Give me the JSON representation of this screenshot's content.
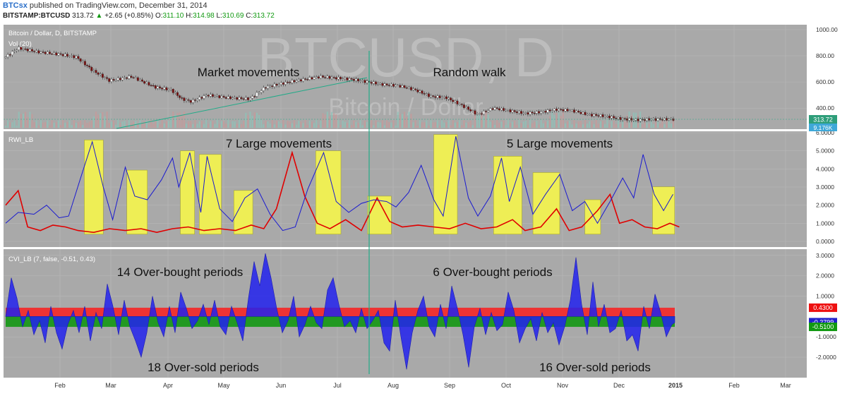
{
  "header": {
    "brand": "BTCsx",
    "published": "published on TradingView.com, December 31, 2014",
    "symbol": "BITSTAMP:BTCUSD",
    "last": "313.72",
    "change": "+2.65 (+0.85%)",
    "o_label": "O:",
    "o": "311.10",
    "h_label": "H:",
    "h": "314.98",
    "l_label": "L:",
    "l": "310.69",
    "c_label": "C:",
    "c": "313.72"
  },
  "colors": {
    "panel_bg": "#a9a9a9",
    "grid": "#b9b9b9",
    "candle_up": "#ffffff",
    "candle_down": "#7a1010",
    "rwi_high": "#1a1ad0",
    "rwi_low": "#e00000",
    "highlight": "#eeee55",
    "cvi_fill": "#2222ee",
    "band_red": "#ee3333",
    "band_green": "#229922",
    "divider": "#22aa88",
    "trend": "#22aa88"
  },
  "watermark": {
    "main": "BTCUSD, D",
    "sub": "Bitcoin / Dollar"
  },
  "chart_data": [
    {
      "type": "candlestick",
      "title": "Bitcoin / Dollar, D, BITSTAMP",
      "volume_label": "Vol (20)",
      "ylim": [
        250,
        1000
      ],
      "yticks": [
        "1000.00",
        "800.00",
        "600.00",
        "400.00"
      ],
      "price_tag": "313.72",
      "volume_tag": "9.176K",
      "x_months": [
        "Feb",
        "Mar",
        "Apr",
        "May",
        "Jun",
        "Jul",
        "Aug",
        "Sep",
        "Oct",
        "Nov",
        "Dec",
        "2015",
        "Feb",
        "Mar"
      ],
      "close_series": [
        [
          1,
          800
        ],
        [
          8,
          860
        ],
        [
          20,
          830
        ],
        [
          35,
          810
        ],
        [
          45,
          790
        ],
        [
          55,
          690
        ],
        [
          66,
          610
        ],
        [
          80,
          640
        ],
        [
          95,
          560
        ],
        [
          105,
          540
        ],
        [
          112,
          470
        ],
        [
          118,
          450
        ],
        [
          128,
          500
        ],
        [
          140,
          480
        ],
        [
          155,
          470
        ],
        [
          165,
          560
        ],
        [
          180,
          600
        ],
        [
          190,
          620
        ],
        [
          200,
          640
        ],
        [
          210,
          630
        ],
        [
          220,
          620
        ],
        [
          230,
          600
        ],
        [
          240,
          580
        ],
        [
          250,
          570
        ],
        [
          260,
          540
        ],
        [
          270,
          490
        ],
        [
          280,
          480
        ],
        [
          290,
          420
        ],
        [
          300,
          350
        ],
        [
          310,
          400
        ],
        [
          320,
          380
        ],
        [
          330,
          360
        ],
        [
          340,
          370
        ],
        [
          350,
          390
        ],
        [
          360,
          380
        ],
        [
          370,
          350
        ],
        [
          380,
          340
        ],
        [
          390,
          320
        ],
        [
          400,
          310
        ],
        [
          410,
          314
        ]
      ],
      "annotations": [
        "Market movements",
        "Random walk"
      ]
    },
    {
      "type": "line",
      "title": "RWI_LB",
      "ylim": [
        0,
        6
      ],
      "yticks": [
        "6.0000",
        "5.0000",
        "4.0000",
        "3.0000",
        "2.0000",
        "1.0000",
        "0.0000"
      ],
      "series": [
        {
          "name": "high",
          "values": [
            [
              0,
              1
            ],
            [
              8,
              1.6
            ],
            [
              18,
              1.5
            ],
            [
              26,
              2
            ],
            [
              34,
              1.3
            ],
            [
              40,
              1.4
            ],
            [
              48,
              3.6
            ],
            [
              55,
              5.5
            ],
            [
              62,
              3
            ],
            [
              68,
              1.2
            ],
            [
              76,
              4.1
            ],
            [
              82,
              2.5
            ],
            [
              90,
              2.3
            ],
            [
              99,
              3.4
            ],
            [
              106,
              4.6
            ],
            [
              110,
              3
            ],
            [
              117,
              4.9
            ],
            [
              124,
              1.6
            ],
            [
              128,
              4.7
            ],
            [
              136,
              1.8
            ],
            [
              144,
              1.1
            ],
            [
              152,
              2.4
            ],
            [
              160,
              2.9
            ],
            [
              168,
              1.5
            ],
            [
              176,
              0.6
            ],
            [
              184,
              0.8
            ],
            [
              192,
              2.9
            ],
            [
              202,
              4.9
            ],
            [
              210,
              2.2
            ],
            [
              218,
              1.6
            ],
            [
              226,
              2.1
            ],
            [
              234,
              2.3
            ],
            [
              242,
              2.2
            ],
            [
              248,
              1.9
            ],
            [
              256,
              2.7
            ],
            [
              264,
              4.2
            ],
            [
              272,
              2.3
            ],
            [
              278,
              1.4
            ],
            [
              286,
              5.8
            ],
            [
              294,
              2.4
            ],
            [
              300,
              1.4
            ],
            [
              308,
              2.5
            ],
            [
              315,
              4.6
            ],
            [
              320,
              2.2
            ],
            [
              327,
              4.1
            ],
            [
              335,
              1.5
            ],
            [
              343,
              2.6
            ],
            [
              352,
              3.7
            ],
            [
              360,
              1.7
            ],
            [
              368,
              2.2
            ],
            [
              376,
              1.0
            ],
            [
              384,
              2.2
            ],
            [
              392,
              3.5
            ],
            [
              399,
              2.4
            ],
            [
              405,
              4.8
            ],
            [
              412,
              2.6
            ],
            [
              418,
              1.7
            ],
            [
              424,
              2.6
            ]
          ]
        },
        {
          "name": "low",
          "values": [
            [
              0,
              2.0
            ],
            [
              8,
              2.8
            ],
            [
              14,
              0.8
            ],
            [
              22,
              0.6
            ],
            [
              30,
              0.9
            ],
            [
              38,
              0.8
            ],
            [
              46,
              0.6
            ],
            [
              56,
              0.5
            ],
            [
              66,
              0.7
            ],
            [
              76,
              0.6
            ],
            [
              86,
              0.7
            ],
            [
              96,
              0.5
            ],
            [
              106,
              0.7
            ],
            [
              116,
              0.8
            ],
            [
              126,
              0.6
            ],
            [
              136,
              0.7
            ],
            [
              146,
              0.6
            ],
            [
              156,
              0.9
            ],
            [
              164,
              0.7
            ],
            [
              172,
              1.8
            ],
            [
              182,
              4.9
            ],
            [
              190,
              2.5
            ],
            [
              198,
              1.0
            ],
            [
              206,
              0.7
            ],
            [
              216,
              1.2
            ],
            [
              226,
              0.6
            ],
            [
              236,
              2.4
            ],
            [
              244,
              1.1
            ],
            [
              252,
              0.8
            ],
            [
              262,
              0.9
            ],
            [
              272,
              0.8
            ],
            [
              282,
              0.7
            ],
            [
              292,
              1.0
            ],
            [
              302,
              0.7
            ],
            [
              312,
              0.8
            ],
            [
              322,
              1.2
            ],
            [
              330,
              0.6
            ],
            [
              340,
              0.8
            ],
            [
              350,
              1.8
            ],
            [
              358,
              0.6
            ],
            [
              366,
              0.8
            ],
            [
              376,
              1.7
            ],
            [
              384,
              2.6
            ],
            [
              390,
              1.0
            ],
            [
              398,
              1.2
            ],
            [
              406,
              0.8
            ],
            [
              414,
              0.7
            ],
            [
              422,
              1.0
            ],
            [
              428,
              0.8
            ]
          ]
        }
      ],
      "highlight_periods": [
        [
          50,
          62
        ],
        [
          77,
          90
        ],
        [
          111,
          120
        ],
        [
          123,
          137
        ],
        [
          145,
          157
        ],
        [
          197,
          213
        ],
        [
          230,
          245
        ],
        [
          272,
          287
        ],
        [
          310,
          328
        ],
        [
          335,
          352
        ],
        [
          368,
          378
        ],
        [
          411,
          425
        ]
      ],
      "annotations": [
        "7 Large movements",
        "5 Large movements"
      ]
    },
    {
      "type": "area",
      "title": "CVI_LB (7, false, -0.51, 0.43)",
      "ylim": [
        -2.9,
        3.2
      ],
      "yticks": [
        "3.0000",
        "2.0000",
        "1.0000",
        "-1.0000",
        "-2.0000"
      ],
      "band_upper": 0.43,
      "band_lower": -0.51,
      "band_upper_tag": "0.4300",
      "band_lower_tag": "-0.5100",
      "last_value_tag": "-0.2799",
      "values": [
        [
          0,
          0
        ],
        [
          4,
          1.9
        ],
        [
          8,
          0.9
        ],
        [
          12,
          -0.5
        ],
        [
          16,
          0.3
        ],
        [
          20,
          -0.9
        ],
        [
          24,
          -0.2
        ],
        [
          28,
          -1.3
        ],
        [
          32,
          0.5
        ],
        [
          36,
          -0.8
        ],
        [
          40,
          -1.6
        ],
        [
          44,
          -0.4
        ],
        [
          48,
          0.3
        ],
        [
          52,
          -0.8
        ],
        [
          56,
          0.5
        ],
        [
          60,
          -1.2
        ],
        [
          64,
          0.2
        ],
        [
          68,
          -0.6
        ],
        [
          72,
          1.6
        ],
        [
          76,
          0.5
        ],
        [
          80,
          -0.9
        ],
        [
          84,
          0.8
        ],
        [
          88,
          -0.5
        ],
        [
          92,
          -1.2
        ],
        [
          96,
          -2.0
        ],
        [
          100,
          -0.8
        ],
        [
          104,
          1.0
        ],
        [
          108,
          -0.3
        ],
        [
          112,
          -1.0
        ],
        [
          116,
          0.5
        ],
        [
          120,
          -0.8
        ],
        [
          124,
          1.2
        ],
        [
          128,
          0.4
        ],
        [
          132,
          -0.6
        ],
        [
          136,
          -0.2
        ],
        [
          140,
          0.6
        ],
        [
          144,
          -0.4
        ],
        [
          148,
          0.8
        ],
        [
          152,
          -0.5
        ],
        [
          156,
          -0.9
        ],
        [
          160,
          0.5
        ],
        [
          164,
          -0.3
        ],
        [
          168,
          -1.2
        ],
        [
          172,
          0.9
        ],
        [
          176,
          2.7
        ],
        [
          180,
          1.5
        ],
        [
          184,
          3.1
        ],
        [
          188,
          1.9
        ],
        [
          192,
          0.4
        ],
        [
          196,
          -0.8
        ],
        [
          200,
          -0.2
        ],
        [
          204,
          1.0
        ],
        [
          208,
          -1.0
        ],
        [
          212,
          -0.4
        ],
        [
          216,
          0.5
        ],
        [
          220,
          -0.3
        ],
        [
          224,
          -0.6
        ],
        [
          228,
          1.3
        ],
        [
          232,
          1.9
        ],
        [
          236,
          0.6
        ],
        [
          240,
          -0.5
        ],
        [
          244,
          -0.2
        ],
        [
          248,
          -0.8
        ],
        [
          252,
          0.4
        ],
        [
          256,
          -0.6
        ],
        [
          260,
          -0.2
        ],
        [
          264,
          0.3
        ],
        [
          268,
          -1.3
        ],
        [
          272,
          -1.7
        ],
        [
          276,
          0.8
        ],
        [
          280,
          -1.0
        ],
        [
          284,
          -2.6
        ],
        [
          288,
          -0.8
        ],
        [
          292,
          0.3
        ],
        [
          296,
          1.0
        ],
        [
          300,
          -0.5
        ],
        [
          304,
          -1.0
        ],
        [
          308,
          0.6
        ],
        [
          312,
          -0.6
        ],
        [
          316,
          1.5
        ],
        [
          320,
          0.4
        ],
        [
          324,
          -0.9
        ],
        [
          328,
          -2.5
        ],
        [
          332,
          -0.5
        ],
        [
          336,
          0.4
        ],
        [
          340,
          -0.9
        ],
        [
          344,
          0.2
        ],
        [
          348,
          -0.7
        ],
        [
          352,
          -0.4
        ],
        [
          356,
          1.2
        ],
        [
          360,
          0.3
        ],
        [
          364,
          -1.3
        ],
        [
          368,
          -0.6
        ],
        [
          372,
          -0.1
        ],
        [
          376,
          -1.2
        ],
        [
          380,
          0.2
        ],
        [
          384,
          -0.8
        ],
        [
          388,
          -0.3
        ],
        [
          392,
          -1.4
        ],
        [
          396,
          -0.5
        ],
        [
          400,
          0.8
        ],
        [
          404,
          2.9
        ],
        [
          408,
          0.6
        ],
        [
          412,
          -0.9
        ],
        [
          416,
          1.7
        ],
        [
          420,
          -0.5
        ],
        [
          424,
          0.6
        ],
        [
          428,
          -0.8
        ],
        [
          432,
          -0.6
        ],
        [
          436,
          0.3
        ],
        [
          440,
          -1.2
        ],
        [
          444,
          -0.9
        ],
        [
          448,
          -1.7
        ],
        [
          452,
          0.5
        ],
        [
          456,
          -0.6
        ],
        [
          460,
          1.1
        ],
        [
          464,
          0.2
        ],
        [
          468,
          -1.0
        ],
        [
          472,
          -0.4
        ],
        [
          474,
          -0.3
        ]
      ],
      "annotations": [
        "14 Over-bought periods",
        "6 Over-bought periods",
        "18 Over-sold periods",
        "16 Over-sold periods"
      ]
    }
  ]
}
